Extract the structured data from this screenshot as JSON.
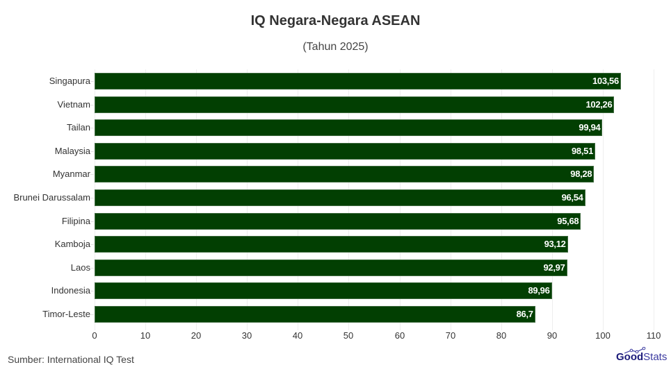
{
  "header": {
    "title": "IQ Negara-Negara ASEAN",
    "subtitle": "(Tahun 2025)"
  },
  "footer": {
    "source": "Sumber: International IQ Test",
    "logo_bold": "Good",
    "logo_light": "Stats"
  },
  "colors": {
    "bar": "#023f02",
    "bar_border": "#3f6b3f",
    "value_label": "#ffffff",
    "logo": "#1b1a7a"
  },
  "chart_data": {
    "type": "bar",
    "orientation": "horizontal",
    "title": "IQ Negara-Negara ASEAN",
    "subtitle": "(Tahun 2025)",
    "xlabel": "",
    "ylabel": "",
    "xlim": [
      0,
      110
    ],
    "x_ticks": [
      0,
      10,
      20,
      30,
      40,
      50,
      60,
      70,
      80,
      90,
      100,
      110
    ],
    "grid": true,
    "legend": null,
    "categories": [
      "Singapura",
      "Vietnam",
      "Tailan",
      "Malaysia",
      "Myanmar",
      "Brunei Darussalam",
      "Filipina",
      "Kamboja",
      "Laos",
      "Indonesia",
      "Timor-Leste"
    ],
    "values": [
      103.56,
      102.26,
      99.94,
      98.51,
      98.28,
      96.54,
      95.68,
      93.12,
      92.97,
      89.96,
      86.7
    ],
    "value_labels": [
      "103,56",
      "102,26",
      "99,94",
      "98,51",
      "98,28",
      "96,54",
      "95,68",
      "93,12",
      "92,97",
      "89,96",
      "86,7"
    ],
    "source": "Sumber: International IQ Test"
  }
}
